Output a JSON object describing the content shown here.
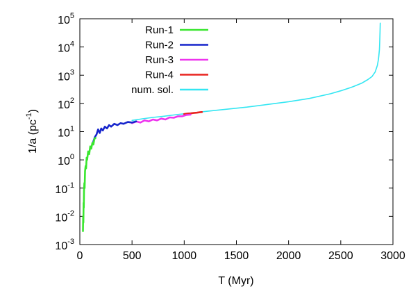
{
  "chart_data": {
    "type": "line",
    "xlabel": "T (Myr)",
    "ylabel_base": "1/a (pc",
    "ylabel_exp": "-1",
    "ylabel_close": ")",
    "xlim": [
      0,
      3000
    ],
    "ylim": [
      0.001,
      100000
    ],
    "yscale": "log",
    "grid": false,
    "legend_position": "top-left",
    "x_ticks": [
      {
        "value": 0,
        "label": "0"
      },
      {
        "value": 500,
        "label": "500"
      },
      {
        "value": 1000,
        "label": "1000"
      },
      {
        "value": 1500,
        "label": "1500"
      },
      {
        "value": 2000,
        "label": "2000"
      },
      {
        "value": 2500,
        "label": "2500"
      },
      {
        "value": 3000,
        "label": "3000"
      }
    ],
    "y_ticks": [
      {
        "value": 0.001,
        "base": "10",
        "exp": "-3"
      },
      {
        "value": 0.01,
        "base": "10",
        "exp": "-2"
      },
      {
        "value": 0.1,
        "base": "10",
        "exp": "-1"
      },
      {
        "value": 1,
        "base": "10",
        "exp": "0"
      },
      {
        "value": 10,
        "base": "10",
        "exp": "1"
      },
      {
        "value": 100,
        "base": "10",
        "exp": "2"
      },
      {
        "value": 1000,
        "base": "10",
        "exp": "3"
      },
      {
        "value": 10000,
        "base": "10",
        "exp": "4"
      },
      {
        "value": 100000,
        "base": "10",
        "exp": "5"
      }
    ],
    "series": [
      {
        "name": "num. sol.",
        "color": "#33e6f2",
        "x": [
          500,
          600,
          700,
          800,
          900,
          1000,
          1100,
          1200,
          1400,
          1600,
          1800,
          2000,
          2200,
          2400,
          2500,
          2600,
          2700,
          2760,
          2800,
          2830,
          2850,
          2860,
          2865,
          2870,
          2872,
          2874,
          2876,
          2878
        ],
        "y": [
          25,
          28.5,
          32,
          35,
          39,
          43,
          47,
          52,
          62,
          74,
          92,
          115,
          150,
          220,
          280,
          370,
          520,
          700,
          900,
          1300,
          2200,
          3500,
          5000,
          8000,
          12000,
          20000,
          35000,
          70000
        ]
      },
      {
        "name": "Run-4",
        "color": "#e8231f",
        "x": [
          1000,
          1030,
          1060,
          1090,
          1120,
          1150,
          1170
        ],
        "y": [
          42,
          43.5,
          44.5,
          46,
          47,
          48.5,
          49.5
        ]
      },
      {
        "name": "Run-3",
        "color": "#ee33ee",
        "x": [
          500,
          540,
          580,
          620,
          660,
          700,
          740,
          780,
          820,
          860,
          900,
          940,
          980,
          1020,
          1060
        ],
        "y": [
          20,
          23,
          21,
          25,
          23,
          27,
          25,
          29,
          27,
          32,
          31,
          35,
          35,
          39,
          40
        ]
      },
      {
        "name": "Run-2",
        "color": "#1625cc",
        "x": [
          130,
          145,
          160,
          175,
          190,
          205,
          220,
          240,
          260,
          280,
          300,
          330,
          360,
          390,
          420,
          460,
          500,
          540
        ],
        "y": [
          4.5,
          6.5,
          8,
          12,
          9,
          13,
          11,
          15,
          13,
          17,
          15,
          19,
          17,
          20,
          19,
          22,
          21,
          23
        ]
      },
      {
        "name": "Run-1",
        "color": "#39e62e",
        "x": [
          30,
          32,
          34,
          36,
          38,
          40,
          43,
          46,
          50,
          55,
          60,
          65,
          70,
          80,
          90,
          100,
          110,
          120,
          130,
          140,
          150
        ],
        "y": [
          0.003,
          0.01,
          0.006,
          0.03,
          0.02,
          0.08,
          0.15,
          0.1,
          0.4,
          0.6,
          0.5,
          1.2,
          1.0,
          2.0,
          1.6,
          3.0,
          2.5,
          4.0,
          3.5,
          5.5,
          6
        ]
      }
    ],
    "legend_order": [
      "Run-1",
      "Run-2",
      "Run-3",
      "Run-4",
      "num. sol."
    ]
  }
}
